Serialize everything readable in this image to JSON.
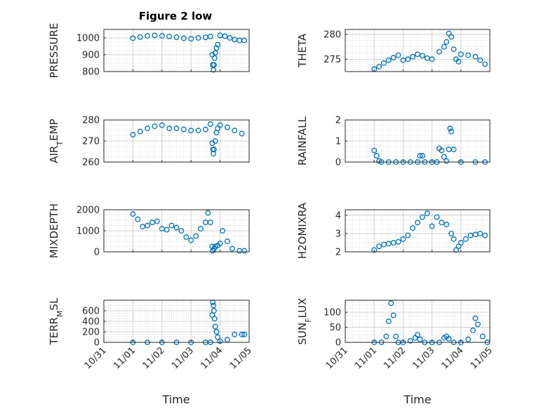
{
  "figure": {
    "title": "Figure 2 low",
    "xlabel": "Time",
    "x_tick_labels": [
      "10/31",
      "11/01",
      "11/02",
      "11/03",
      "11/04",
      "11/05"
    ]
  },
  "chart_data": [
    {
      "type": "scatter",
      "ylabel": "PRESSURE",
      "ylim": [
        800,
        1050
      ],
      "yticks": [
        800,
        900,
        1000
      ],
      "grid": true,
      "series": [
        {
          "x": [
            "11/01 00:00",
            "11/01 06:00",
            "11/01 12:00",
            "11/01 18:00",
            "11/02 00:00",
            "11/02 06:00",
            "11/02 12:00",
            "11/02 18:00",
            "11/03 00:00",
            "11/03 06:00",
            "11/03 12:00",
            "11/03 16:00",
            "11/03 17:30",
            "11/03 18:00",
            "11/03 18:30",
            "11/03 19:00",
            "11/03 19:30",
            "11/03 20:00",
            "11/03 21:00",
            "11/03 22:00",
            "11/04 00:00",
            "11/04 04:00",
            "11/04 08:00",
            "11/04 12:00",
            "11/04 16:00",
            "11/04 20:00"
          ],
          "y": [
            998,
            1005,
            1012,
            1015,
            1012,
            1008,
            1004,
            998,
            995,
            1000,
            1003,
            1008,
            900,
            840,
            810,
            840,
            880,
            910,
            940,
            960,
            1015,
            1010,
            1000,
            990,
            985,
            985
          ]
        }
      ]
    },
    {
      "type": "scatter",
      "ylabel": "THETA",
      "ylim": [
        272.5,
        281
      ],
      "yticks": [
        275,
        280
      ],
      "grid": true,
      "series": [
        {
          "x": [
            "11/01 00:00",
            "11/01 04:00",
            "11/01 08:00",
            "11/01 12:00",
            "11/01 16:00",
            "11/01 20:00",
            "11/02 00:00",
            "11/02 04:00",
            "11/02 08:00",
            "11/02 12:00",
            "11/02 16:00",
            "11/02 20:00",
            "11/03 00:00",
            "11/03 06:00",
            "11/03 10:00",
            "11/03 12:00",
            "11/03 14:00",
            "11/03 16:00",
            "11/03 18:00",
            "11/03 20:00",
            "11/03 22:00",
            "11/04 00:00",
            "11/04 06:00",
            "11/04 12:00",
            "11/04 16:00",
            "11/04 20:00"
          ],
          "y": [
            273,
            273.5,
            274.2,
            274.8,
            275.3,
            275.8,
            274.8,
            275.0,
            275.5,
            276.0,
            275.7,
            275.2,
            275.0,
            276.5,
            277.5,
            278.5,
            280.2,
            279.5,
            277.0,
            275.0,
            274.5,
            276.0,
            275.8,
            275.5,
            274.8,
            274.0
          ]
        }
      ]
    },
    {
      "type": "scatter",
      "ylabel": "AIR_TEMP",
      "ylim": [
        260,
        280
      ],
      "yticks": [
        260,
        270,
        280
      ],
      "grid": true,
      "series": [
        {
          "x": [
            "11/01 00:00",
            "11/01 06:00",
            "11/01 12:00",
            "11/01 18:00",
            "11/02 00:00",
            "11/02 06:00",
            "11/02 12:00",
            "11/02 18:00",
            "11/03 00:00",
            "11/03 06:00",
            "11/03 12:00",
            "11/03 16:00",
            "11/03 17:30",
            "11/03 18:00",
            "11/03 18:30",
            "11/03 19:00",
            "11/03 20:00",
            "11/03 21:00",
            "11/03 22:00",
            "11/04 00:00",
            "11/04 06:00",
            "11/04 12:00",
            "11/04 18:00"
          ],
          "y": [
            273,
            274.5,
            276,
            277,
            277.5,
            276,
            276,
            275.5,
            275,
            275,
            275.5,
            278,
            269,
            266,
            264,
            266,
            270,
            274,
            276,
            277.5,
            276.5,
            275,
            273.5
          ]
        }
      ]
    },
    {
      "type": "scatter",
      "ylabel": "RAINFALL",
      "ylim": [
        0,
        2
      ],
      "yticks": [
        0,
        1,
        2
      ],
      "grid": true,
      "series": [
        {
          "x": [
            "11/01 00:00",
            "11/01 02:00",
            "11/01 04:00",
            "11/01 06:00",
            "11/01 12:00",
            "11/01 18:00",
            "11/02 00:00",
            "11/02 06:00",
            "11/02 12:00",
            "11/02 14:00",
            "11/02 16:00",
            "11/02 18:00",
            "11/03 00:00",
            "11/03 04:00",
            "11/03 06:00",
            "11/03 08:00",
            "11/03 10:00",
            "11/03 12:00",
            "11/03 14:00",
            "11/03 15:00",
            "11/03 16:00",
            "11/03 18:00",
            "11/04 00:00",
            "11/04 12:00",
            "11/04 20:00"
          ],
          "y": [
            0.55,
            0.3,
            0.05,
            0,
            0,
            0,
            0,
            0,
            0,
            0.3,
            0.3,
            0,
            0,
            0,
            0.65,
            0.55,
            0.25,
            0.05,
            0.6,
            1.6,
            1.45,
            0.6,
            0,
            0,
            0
          ]
        }
      ]
    },
    {
      "type": "scatter",
      "ylabel": "MIXDEPTH",
      "ylim": [
        0,
        2000
      ],
      "yticks": [
        0,
        1000,
        2000
      ],
      "grid": true,
      "series": [
        {
          "x": [
            "11/01 00:00",
            "11/01 04:00",
            "11/01 08:00",
            "11/01 12:00",
            "11/01 16:00",
            "11/01 20:00",
            "11/02 00:00",
            "11/02 04:00",
            "11/02 08:00",
            "11/02 12:00",
            "11/02 16:00",
            "11/02 20:00",
            "11/03 00:00",
            "11/03 04:00",
            "11/03 08:00",
            "11/03 12:00",
            "11/03 14:00",
            "11/03 16:00",
            "11/03 17:30",
            "11/03 18:00",
            "11/03 19:00",
            "11/03 20:00",
            "11/03 22:00",
            "11/04 00:00",
            "11/04 02:00",
            "11/04 06:00",
            "11/04 10:00",
            "11/04 16:00",
            "11/04 20:00"
          ],
          "y": [
            1800,
            1550,
            1200,
            1250,
            1400,
            1450,
            1100,
            1050,
            1250,
            1150,
            1000,
            700,
            550,
            750,
            1100,
            1400,
            1850,
            1400,
            250,
            50,
            150,
            250,
            300,
            400,
            1000,
            500,
            150,
            50,
            50
          ]
        }
      ]
    },
    {
      "type": "scatter",
      "ylabel": "H2OMIXRA",
      "ylim": [
        2,
        4.3
      ],
      "yticks": [
        2,
        3,
        4
      ],
      "grid": true,
      "series": [
        {
          "x": [
            "11/01 00:00",
            "11/01 04:00",
            "11/01 08:00",
            "11/01 12:00",
            "11/01 16:00",
            "11/01 20:00",
            "11/02 00:00",
            "11/02 04:00",
            "11/02 08:00",
            "11/02 12:00",
            "11/02 16:00",
            "11/02 20:00",
            "11/03 00:00",
            "11/03 04:00",
            "11/03 08:00",
            "11/03 12:00",
            "11/03 16:00",
            "11/03 18:00",
            "11/03 20:00",
            "11/03 22:00",
            "11/04 00:00",
            "11/04 04:00",
            "11/04 08:00",
            "11/04 12:00",
            "11/04 16:00",
            "11/04 20:00"
          ],
          "y": [
            2.1,
            2.3,
            2.4,
            2.45,
            2.5,
            2.55,
            2.7,
            2.9,
            3.3,
            3.6,
            3.9,
            4.1,
            3.4,
            3.9,
            3.6,
            3.5,
            3.0,
            2.7,
            2.1,
            2.3,
            2.5,
            2.7,
            2.9,
            2.95,
            3.0,
            2.9
          ]
        }
      ]
    },
    {
      "type": "scatter",
      "ylabel": "TERR_MSL",
      "ylim": [
        0,
        800
      ],
      "yticks": [
        0,
        200,
        400,
        600
      ],
      "grid": true,
      "series": [
        {
          "x": [
            "11/01 00:00",
            "11/01 12:00",
            "11/02 00:00",
            "11/02 12:00",
            "11/03 00:00",
            "11/03 12:00",
            "11/03 16:00",
            "11/03 17:30",
            "11/03 18:00",
            "11/03 18:30",
            "11/03 19:00",
            "11/03 19:30",
            "11/03 20:00",
            "11/03 21:00",
            "11/03 22:00",
            "11/04 00:00",
            "11/04 06:00",
            "11/04 12:00",
            "11/04 18:00",
            "11/04 20:00"
          ],
          "y": [
            0,
            0,
            0,
            0,
            0,
            0,
            0,
            520,
            760,
            700,
            600,
            450,
            300,
            200,
            100,
            20,
            50,
            150,
            150,
            150
          ]
        }
      ]
    },
    {
      "type": "scatter",
      "ylabel": "SUN_FLUX",
      "ylim": [
        0,
        140
      ],
      "yticks": [
        0,
        50,
        100
      ],
      "grid": true,
      "series": [
        {
          "x": [
            "11/01 00:00",
            "11/01 06:00",
            "11/01 10:00",
            "11/01 12:00",
            "11/01 14:00",
            "11/01 16:00",
            "11/01 18:00",
            "11/01 20:00",
            "11/02 00:00",
            "11/02 06:00",
            "11/02 10:00",
            "11/02 12:00",
            "11/02 14:00",
            "11/02 18:00",
            "11/03 00:00",
            "11/03 06:00",
            "11/03 10:00",
            "11/03 12:00",
            "11/03 14:00",
            "11/03 18:00",
            "11/04 00:00",
            "11/04 06:00",
            "11/04 10:00",
            "11/04 12:00",
            "11/04 14:00",
            "11/04 18:00",
            "11/04 22:00"
          ],
          "y": [
            0,
            0,
            20,
            70,
            130,
            90,
            20,
            0,
            0,
            5,
            15,
            25,
            10,
            0,
            0,
            0,
            15,
            20,
            12,
            0,
            0,
            10,
            40,
            80,
            60,
            20,
            0
          ]
        }
      ]
    }
  ],
  "colors": {
    "marker": "#0072bd",
    "axis": "#262626",
    "grid": "#d0d0d0"
  }
}
